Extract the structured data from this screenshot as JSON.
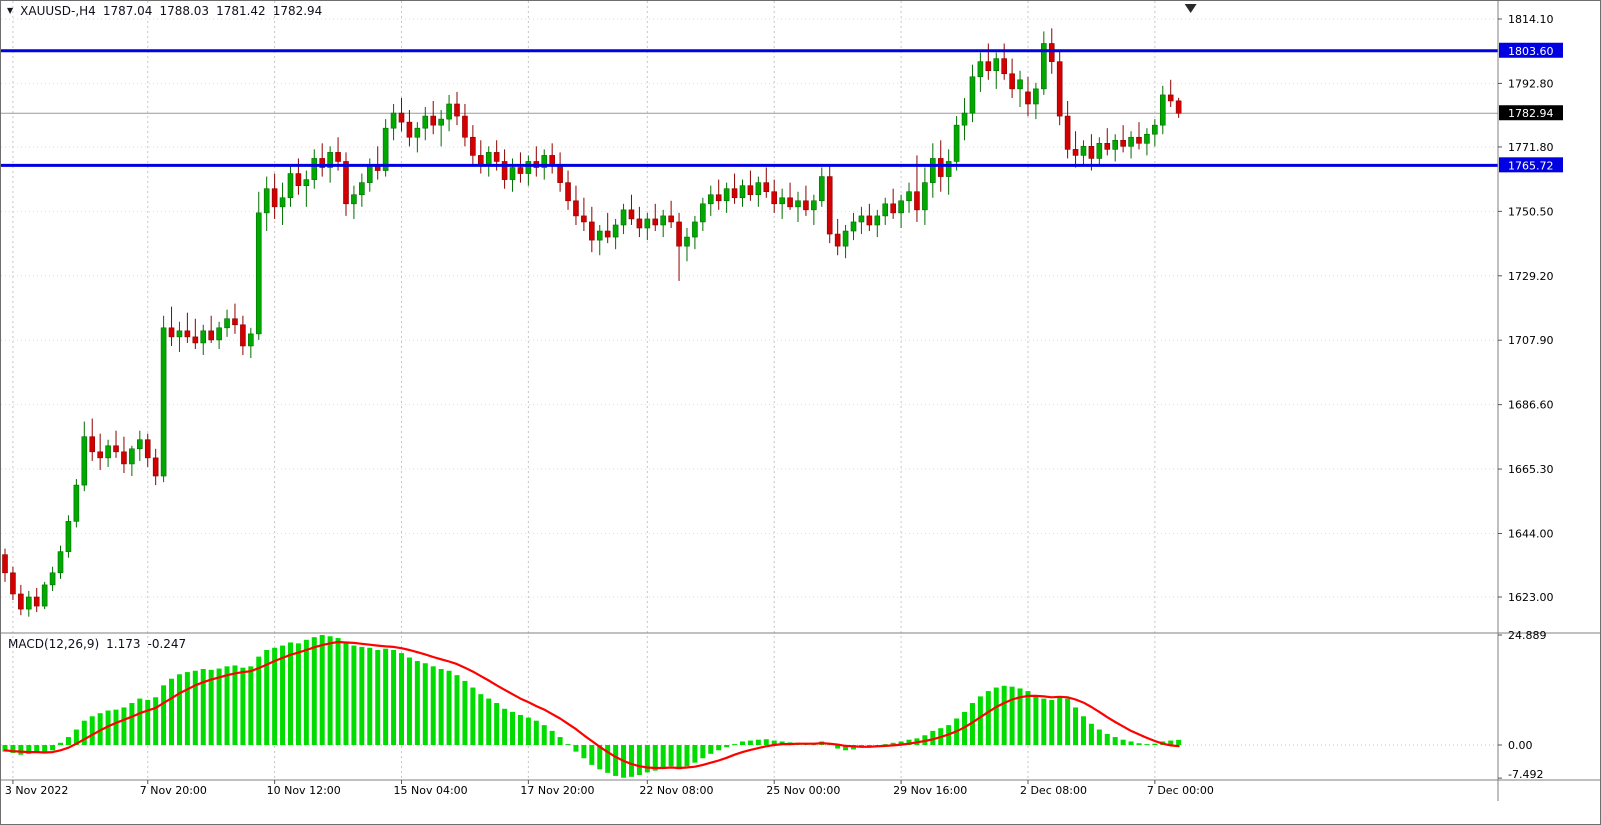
{
  "window": {
    "symbol_period": "XAUUSD-,H4",
    "ohlc": {
      "open": "1787.04",
      "high": "1788.03",
      "low": "1781.42",
      "close": "1782.94"
    }
  },
  "indicator": {
    "label": "MACD(12,26,9)",
    "main": "1.173",
    "signal": "-0.247"
  },
  "icons": {
    "chart_menu": "▼",
    "shift_marker": "triangle-down"
  },
  "colors": {
    "background": "#FFFFFF",
    "up": "#00A800",
    "up_edge": "#006E00",
    "down": "#D20000",
    "down_edge": "#8E0000",
    "macd_bar": "#00DC00",
    "signal_line": "#FF0000",
    "hline": "#0000E0",
    "price_marker_bg": "#000000",
    "grid_v": "#C6C6C6",
    "grid_h": "#DEDEDE",
    "separator": "#808080",
    "axis_text": "#000000",
    "current_price_line": "#9A9A9A",
    "marker_text": "#FFFFFF"
  },
  "chart_data": {
    "type": "candlestick",
    "symbol": "XAUUSD-",
    "timeframe": "H4",
    "title": "XAUUSD- H4 with MACD(12,26,9)",
    "price_axis_labels": [
      1814.1,
      1792.8,
      1771.8,
      1750.5,
      1729.2,
      1707.9,
      1686.6,
      1665.3,
      1644.0,
      1623.0
    ],
    "hlines": [
      {
        "price": 1803.6,
        "label": "1803.60"
      },
      {
        "price": 1765.72,
        "label": "1765.72"
      }
    ],
    "current_price": {
      "price": 1782.94,
      "label": "1782.94"
    },
    "time_labels": [
      {
        "index": 1,
        "label": "3 Nov 2022"
      },
      {
        "index": 18,
        "label": "7 Nov 20:00"
      },
      {
        "index": 34,
        "label": "10 Nov 12:00"
      },
      {
        "index": 50,
        "label": "15 Nov 04:00"
      },
      {
        "index": 66,
        "label": "17 Nov 20:00"
      },
      {
        "index": 81,
        "label": "22 Nov 08:00"
      },
      {
        "index": 97,
        "label": "25 Nov 00:00"
      },
      {
        "index": 113,
        "label": "29 Nov 16:00"
      },
      {
        "index": 129,
        "label": "2 Dec 08:00"
      },
      {
        "index": 145,
        "label": "7 Dec 00:00"
      }
    ],
    "candles": [
      [
        1637,
        1639,
        1628,
        1631
      ],
      [
        1631,
        1633,
        1622,
        1624
      ],
      [
        1624,
        1627,
        1617,
        1619
      ],
      [
        1619,
        1625,
        1616.5,
        1623
      ],
      [
        1623,
        1626,
        1618,
        1620
      ],
      [
        1620,
        1628,
        1619,
        1627
      ],
      [
        1627,
        1633,
        1625,
        1631
      ],
      [
        1631,
        1640,
        1629,
        1638
      ],
      [
        1638,
        1650,
        1636,
        1648
      ],
      [
        1648,
        1662,
        1646,
        1660
      ],
      [
        1660,
        1681,
        1658,
        1676
      ],
      [
        1676,
        1682,
        1668,
        1671
      ],
      [
        1671,
        1677,
        1665,
        1669
      ],
      [
        1669,
        1675,
        1666,
        1673
      ],
      [
        1673,
        1678,
        1669,
        1671
      ],
      [
        1671,
        1676,
        1664,
        1667
      ],
      [
        1667,
        1673,
        1663,
        1672
      ],
      [
        1672,
        1678,
        1668,
        1675
      ],
      [
        1675,
        1677,
        1666,
        1669
      ],
      [
        1669,
        1672,
        1660,
        1663
      ],
      [
        1663,
        1716,
        1661,
        1712
      ],
      [
        1712,
        1719,
        1706,
        1709
      ],
      [
        1709,
        1714,
        1704,
        1711
      ],
      [
        1711,
        1717,
        1707,
        1709
      ],
      [
        1709,
        1715,
        1705,
        1707
      ],
      [
        1707,
        1713,
        1703,
        1711
      ],
      [
        1711,
        1716,
        1707,
        1708
      ],
      [
        1708,
        1714,
        1705,
        1712
      ],
      [
        1712,
        1718,
        1709,
        1715
      ],
      [
        1715,
        1720,
        1710,
        1713
      ],
      [
        1713,
        1716,
        1703,
        1706
      ],
      [
        1706,
        1712,
        1702,
        1710
      ],
      [
        1710,
        1757,
        1708,
        1750
      ],
      [
        1750,
        1762,
        1744,
        1758
      ],
      [
        1758,
        1763,
        1748,
        1752
      ],
      [
        1752,
        1760,
        1746,
        1755
      ],
      [
        1755,
        1766,
        1752,
        1763
      ],
      [
        1763,
        1768,
        1756,
        1759
      ],
      [
        1759,
        1764,
        1752,
        1761
      ],
      [
        1761,
        1771,
        1758,
        1768
      ],
      [
        1768,
        1773,
        1762,
        1765
      ],
      [
        1765,
        1772,
        1760,
        1770
      ],
      [
        1770,
        1775,
        1764,
        1767
      ],
      [
        1767,
        1770,
        1749,
        1753
      ],
      [
        1753,
        1759,
        1748,
        1756
      ],
      [
        1756,
        1763,
        1752,
        1760
      ],
      [
        1760,
        1768,
        1757,
        1766
      ],
      [
        1766,
        1772,
        1761,
        1764
      ],
      [
        1764,
        1781,
        1762,
        1778
      ],
      [
        1778,
        1786,
        1774,
        1783
      ],
      [
        1783,
        1788,
        1777,
        1780
      ],
      [
        1780,
        1784,
        1772,
        1775
      ],
      [
        1775,
        1780,
        1770,
        1778
      ],
      [
        1778,
        1785,
        1774,
        1782
      ],
      [
        1782,
        1787,
        1776,
        1779
      ],
      [
        1779,
        1784,
        1772,
        1781
      ],
      [
        1781,
        1789,
        1777,
        1786
      ],
      [
        1786,
        1790,
        1779,
        1782
      ],
      [
        1782,
        1786,
        1772,
        1775
      ],
      [
        1775,
        1779,
        1766,
        1769
      ],
      [
        1769,
        1774,
        1763,
        1766
      ],
      [
        1766,
        1772,
        1762,
        1770
      ],
      [
        1770,
        1774,
        1764,
        1767
      ],
      [
        1767,
        1771,
        1758,
        1761
      ],
      [
        1761,
        1768,
        1757,
        1765
      ],
      [
        1765,
        1770,
        1760,
        1763
      ],
      [
        1763,
        1769,
        1759,
        1767
      ],
      [
        1767,
        1772,
        1762,
        1765
      ],
      [
        1765,
        1771,
        1761,
        1769
      ],
      [
        1769,
        1773,
        1763,
        1766
      ],
      [
        1766,
        1770,
        1757,
        1760
      ],
      [
        1760,
        1764,
        1751,
        1754
      ],
      [
        1754,
        1759,
        1746,
        1749
      ],
      [
        1749,
        1755,
        1744,
        1747
      ],
      [
        1747,
        1752,
        1737,
        1741
      ],
      [
        1741,
        1746,
        1736,
        1744
      ],
      [
        1744,
        1750,
        1740,
        1742
      ],
      [
        1742,
        1748,
        1738,
        1746
      ],
      [
        1746,
        1753,
        1743,
        1751
      ],
      [
        1751,
        1756,
        1746,
        1748
      ],
      [
        1748,
        1752,
        1742,
        1745
      ],
      [
        1745,
        1750,
        1741,
        1748
      ],
      [
        1748,
        1753,
        1744,
        1746
      ],
      [
        1746,
        1751,
        1742,
        1749
      ],
      [
        1749,
        1754,
        1745,
        1747
      ],
      [
        1747,
        1750,
        1727.5,
        1739
      ],
      [
        1739,
        1745,
        1734,
        1742
      ],
      [
        1742,
        1749,
        1738,
        1747
      ],
      [
        1747,
        1755,
        1744,
        1753
      ],
      [
        1753,
        1759,
        1749,
        1756
      ],
      [
        1756,
        1761,
        1751,
        1754
      ],
      [
        1754,
        1760,
        1750,
        1758
      ],
      [
        1758,
        1763,
        1753,
        1755
      ],
      [
        1755,
        1761,
        1752,
        1759
      ],
      [
        1759,
        1764,
        1754,
        1756
      ],
      [
        1756,
        1762,
        1752,
        1760
      ],
      [
        1760,
        1765,
        1755,
        1757
      ],
      [
        1757,
        1761,
        1750,
        1753
      ],
      [
        1753,
        1758,
        1748,
        1755
      ],
      [
        1755,
        1760,
        1751,
        1752
      ],
      [
        1752,
        1757,
        1747,
        1754
      ],
      [
        1754,
        1759,
        1749,
        1751
      ],
      [
        1751,
        1756,
        1746,
        1754
      ],
      [
        1754,
        1765,
        1752,
        1762
      ],
      [
        1762,
        1766,
        1740,
        1743
      ],
      [
        1743,
        1748,
        1736,
        1739
      ],
      [
        1739,
        1746,
        1735,
        1744
      ],
      [
        1744,
        1750,
        1741,
        1747
      ],
      [
        1747,
        1752,
        1743,
        1749
      ],
      [
        1749,
        1753,
        1744,
        1746
      ],
      [
        1746,
        1751,
        1742,
        1749
      ],
      [
        1749,
        1755,
        1746,
        1753
      ],
      [
        1753,
        1758,
        1748,
        1750
      ],
      [
        1750,
        1756,
        1745,
        1754
      ],
      [
        1754,
        1760,
        1750,
        1757
      ],
      [
        1757,
        1769,
        1747,
        1751
      ],
      [
        1751,
        1765,
        1746,
        1760
      ],
      [
        1760,
        1773,
        1755,
        1768
      ],
      [
        1768,
        1774,
        1757,
        1762
      ],
      [
        1762,
        1771,
        1756,
        1767
      ],
      [
        1767,
        1782,
        1764,
        1779
      ],
      [
        1779,
        1788,
        1774,
        1783
      ],
      [
        1783,
        1799,
        1780,
        1795
      ],
      [
        1795,
        1803,
        1790,
        1800
      ],
      [
        1800,
        1806,
        1794,
        1797
      ],
      [
        1797,
        1803,
        1791,
        1801
      ],
      [
        1801,
        1806,
        1794,
        1796
      ],
      [
        1796,
        1801,
        1788,
        1791
      ],
      [
        1791,
        1797,
        1785,
        1794
      ],
      [
        1790,
        1795,
        1782,
        1786
      ],
      [
        1786,
        1793,
        1781,
        1791
      ],
      [
        1791,
        1810,
        1789,
        1806
      ],
      [
        1806,
        1811,
        1796,
        1800
      ],
      [
        1800,
        1804,
        1779,
        1782
      ],
      [
        1782,
        1787,
        1768,
        1771
      ],
      [
        1771,
        1777,
        1765,
        1769
      ],
      [
        1769,
        1774,
        1766,
        1772
      ],
      [
        1772,
        1776,
        1764,
        1768
      ],
      [
        1768,
        1775,
        1766,
        1773
      ],
      [
        1773,
        1778,
        1769,
        1771
      ],
      [
        1771,
        1776,
        1767,
        1774
      ],
      [
        1774,
        1779,
        1770,
        1772
      ],
      [
        1772,
        1777,
        1768,
        1775
      ],
      [
        1775,
        1780,
        1771,
        1773
      ],
      [
        1773,
        1778,
        1769,
        1776
      ],
      [
        1776,
        1781,
        1772,
        1779
      ],
      [
        1779,
        1792,
        1776,
        1789
      ],
      [
        1789,
        1794,
        1785,
        1787
      ],
      [
        1787.04,
        1788.03,
        1781.42,
        1782.94
      ]
    ],
    "macd": {
      "label": "MACD(12,26,9)",
      "value_main": "1.173",
      "value_signal": "-0.247",
      "axis_labels": [
        "24.889",
        "0.00",
        "-7.492"
      ],
      "axis_values": [
        24.889,
        0,
        -7.492
      ],
      "hist": [
        -1.5,
        -1.8,
        -2.2,
        -2.0,
        -1.6,
        -1.9,
        -1.2,
        0.5,
        1.8,
        3.5,
        5.5,
        6.5,
        7.2,
        7.8,
        8.0,
        8.5,
        9.5,
        10.5,
        10.2,
        10.8,
        13.5,
        15.0,
        16.0,
        16.5,
        16.8,
        17.2,
        17.0,
        17.3,
        17.8,
        18.0,
        17.5,
        17.8,
        20.0,
        21.5,
        22.0,
        22.5,
        23.2,
        23.0,
        23.8,
        24.4,
        24.889,
        24.6,
        24.2,
        23.0,
        22.5,
        22.2,
        22.0,
        21.5,
        21.8,
        21.5,
        20.8,
        19.8,
        19.0,
        18.5,
        17.8,
        17.2,
        16.8,
        15.8,
        14.5,
        13.0,
        11.5,
        10.5,
        9.5,
        8.2,
        7.5,
        6.8,
        6.2,
        5.5,
        4.5,
        3.2,
        1.8,
        0.2,
        -1.5,
        -3.0,
        -4.5,
        -5.5,
        -6.3,
        -7.0,
        -7.4,
        -7.2,
        -6.8,
        -6.2,
        -5.8,
        -5.2,
        -4.8,
        -5.5,
        -4.8,
        -4.0,
        -3.0,
        -2.0,
        -1.2,
        -0.5,
        0.2,
        0.8,
        1.0,
        1.2,
        1.3,
        1.0,
        0.8,
        0.6,
        0.5,
        0.3,
        0.2,
        0.8,
        0.2,
        -0.8,
        -1.2,
        -1.0,
        -0.6,
        -0.4,
        -0.2,
        0.2,
        0.5,
        0.8,
        1.2,
        1.5,
        2.2,
        3.2,
        3.8,
        4.5,
        6.0,
        7.5,
        9.5,
        11.0,
        12.2,
        13.0,
        13.4,
        13.2,
        12.8,
        12.2,
        11.2,
        10.5,
        10.2,
        11.0,
        10.5,
        8.5,
        6.5,
        4.8,
        3.5,
        2.5,
        1.8,
        1.2,
        0.8,
        0.4,
        0.2,
        0.3,
        0.8,
        1.0,
        1.173
      ],
      "signal": [
        -1.2,
        -1.4,
        -1.5,
        -1.6,
        -1.6,
        -1.7,
        -1.6,
        -1.2,
        -0.6,
        0.3,
        1.3,
        2.3,
        3.3,
        4.2,
        5.0,
        5.7,
        6.4,
        7.2,
        7.8,
        8.4,
        9.5,
        10.6,
        11.7,
        12.6,
        13.5,
        14.2,
        14.8,
        15.3,
        15.8,
        16.2,
        16.5,
        16.7,
        17.4,
        18.2,
        19.0,
        19.7,
        20.4,
        20.9,
        21.5,
        22.1,
        22.6,
        23.0,
        23.3,
        23.2,
        23.1,
        22.9,
        22.7,
        22.5,
        22.3,
        22.2,
        21.9,
        21.5,
        21.0,
        20.5,
        19.9,
        19.4,
        18.9,
        18.3,
        17.5,
        16.6,
        15.6,
        14.6,
        13.5,
        12.5,
        11.5,
        10.5,
        9.7,
        8.8,
        8.0,
        7.0,
        6.0,
        4.8,
        3.6,
        2.2,
        0.9,
        -0.4,
        -1.6,
        -2.7,
        -3.6,
        -4.3,
        -4.8,
        -5.1,
        -5.2,
        -5.2,
        -5.1,
        -5.2,
        -5.1,
        -4.9,
        -4.5,
        -4.0,
        -3.5,
        -2.9,
        -2.2,
        -1.6,
        -1.1,
        -0.7,
        -0.3,
        0.0,
        0.2,
        0.2,
        0.3,
        0.3,
        0.3,
        0.4,
        0.3,
        0.1,
        -0.2,
        -0.3,
        -0.4,
        -0.4,
        -0.3,
        -0.2,
        -0.1,
        0.1,
        0.3,
        0.6,
        0.9,
        1.3,
        1.8,
        2.4,
        3.1,
        4.0,
        5.1,
        6.3,
        7.5,
        8.6,
        9.5,
        10.3,
        10.8,
        11.1,
        11.1,
        11.0,
        10.8,
        10.9,
        10.8,
        10.3,
        9.6,
        8.6,
        7.5,
        6.3,
        5.2,
        4.2,
        3.2,
        2.4,
        1.6,
        0.9,
        0.3,
        -0.1,
        -0.247
      ]
    }
  }
}
